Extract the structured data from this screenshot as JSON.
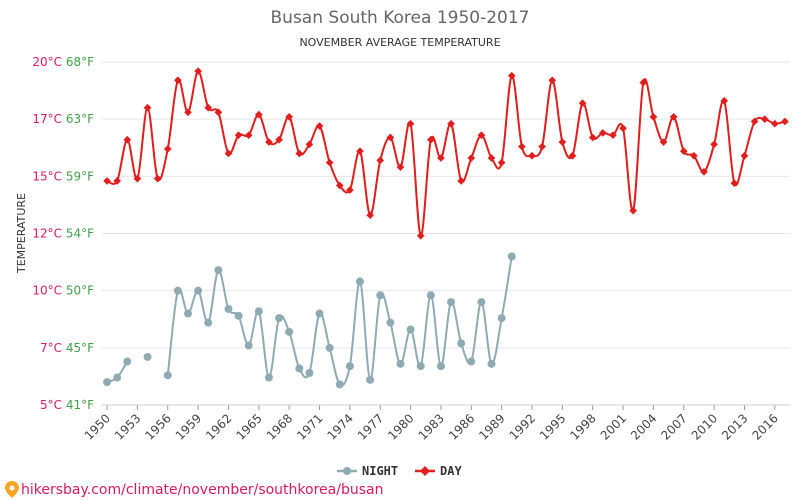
{
  "chart_data": {
    "type": "line",
    "title": "Busan South Korea 1950-2017",
    "subtitle": "NOVEMBER AVERAGE TEMPERATURE",
    "ylabel": "TEMPERATURE",
    "ylim": [
      5,
      20
    ],
    "xlim": [
      1949.5,
      2017.5
    ],
    "y_ticks": [
      {
        "value": 5,
        "label": "5°C 41°F"
      },
      {
        "value": 7.5,
        "label": "7°C 45°F"
      },
      {
        "value": 10,
        "label": "10°C 50°F"
      },
      {
        "value": 12.5,
        "label": "12°C 54°F"
      },
      {
        "value": 15,
        "label": "15°C 59°F"
      },
      {
        "value": 17.5,
        "label": "17°C 63°F"
      },
      {
        "value": 20,
        "label": "20°C 68°F"
      }
    ],
    "x_ticks": [
      1950,
      1953,
      1956,
      1959,
      1962,
      1965,
      1968,
      1971,
      1974,
      1977,
      1980,
      1983,
      1986,
      1989,
      1992,
      1995,
      1998,
      2001,
      2004,
      2007,
      2010,
      2013,
      2016
    ],
    "grid": true,
    "legend_position": "bottom",
    "series": [
      {
        "name": "NIGHT",
        "color": "#90aab3",
        "marker": "circle",
        "x": [
          1950,
          1951,
          1952,
          1954,
          1956,
          1957,
          1958,
          1959,
          1960,
          1961,
          1962,
          1963,
          1964,
          1965,
          1966,
          1967,
          1968,
          1969,
          1970,
          1971,
          1972,
          1973,
          1974,
          1975,
          1976,
          1977,
          1978,
          1979,
          1980,
          1981,
          1982,
          1983,
          1984,
          1985,
          1986,
          1987,
          1988,
          1989,
          1990
        ],
        "values": [
          6.0,
          6.2,
          6.9,
          7.1,
          6.3,
          10.0,
          9.0,
          10.0,
          8.6,
          10.9,
          9.2,
          8.9,
          7.6,
          9.1,
          6.2,
          8.8,
          8.2,
          6.6,
          6.4,
          9.0,
          7.5,
          5.9,
          6.7,
          10.4,
          6.1,
          9.8,
          8.6,
          6.8,
          8.3,
          6.7,
          9.8,
          6.7,
          9.5,
          7.7,
          6.9,
          9.5,
          6.8,
          8.8,
          11.5
        ]
      },
      {
        "name": "DAY",
        "color": "#e11d1d",
        "marker": "diamond",
        "x": [
          1950,
          1951,
          1952,
          1953,
          1954,
          1955,
          1956,
          1957,
          1958,
          1959,
          1960,
          1961,
          1962,
          1963,
          1964,
          1965,
          1966,
          1967,
          1968,
          1969,
          1970,
          1971,
          1972,
          1973,
          1974,
          1975,
          1976,
          1977,
          1978,
          1979,
          1980,
          1981,
          1982,
          1983,
          1984,
          1985,
          1986,
          1987,
          1988,
          1989,
          1990,
          1991,
          1992,
          1993,
          1994,
          1995,
          1996,
          1997,
          1998,
          1999,
          2000,
          2001,
          2002,
          2003,
          2004,
          2005,
          2006,
          2007,
          2008,
          2009,
          2010,
          2011,
          2012,
          2013,
          2014,
          2015,
          2016,
          2017
        ],
        "values": [
          14.8,
          14.8,
          16.6,
          14.9,
          18.0,
          14.9,
          16.2,
          19.2,
          17.8,
          19.6,
          18.0,
          17.8,
          16.0,
          16.8,
          16.8,
          17.7,
          16.5,
          16.6,
          17.6,
          16.0,
          16.4,
          17.2,
          15.6,
          14.6,
          14.4,
          16.1,
          13.3,
          15.7,
          16.7,
          15.4,
          17.3,
          12.4,
          16.6,
          15.8,
          17.3,
          14.8,
          15.8,
          16.8,
          15.8,
          15.6,
          19.4,
          16.3,
          15.9,
          16.3,
          19.2,
          16.5,
          15.9,
          18.2,
          16.7,
          16.9,
          16.8,
          17.1,
          13.5,
          19.1,
          17.6,
          16.5,
          17.6,
          16.1,
          15.9,
          15.2,
          16.4,
          18.3,
          14.7,
          15.9,
          17.4,
          17.5,
          17.3,
          17.4
        ]
      }
    ]
  },
  "footer": {
    "url": "hikersbay.com/climate/november/southkorea/busan"
  },
  "colors": {
    "grid": "#e6e6e6",
    "tick_day": "#d81b60",
    "tick_night": "#43a047",
    "footer_text": "#d81b60",
    "pin": "#f5a623"
  }
}
